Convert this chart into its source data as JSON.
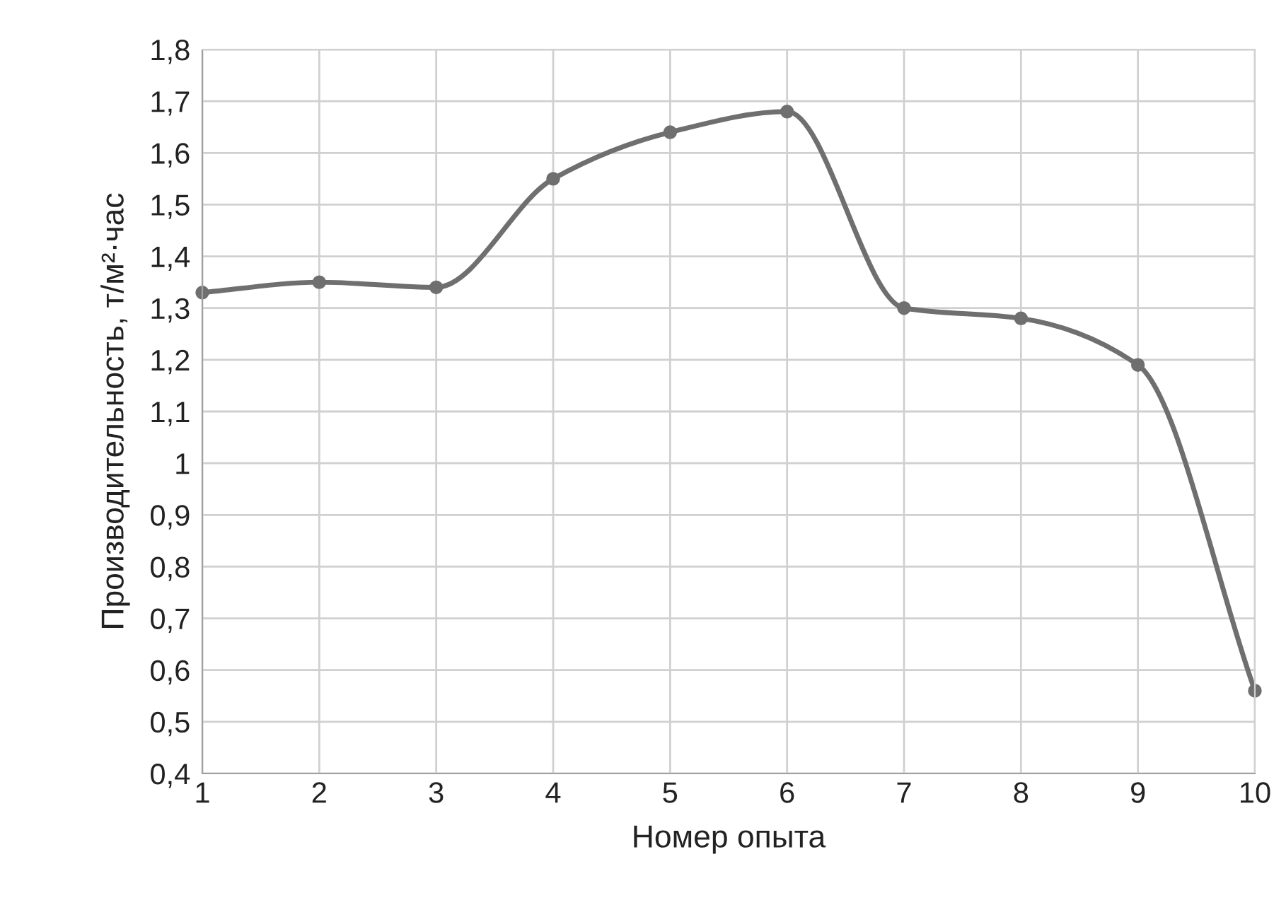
{
  "chart_data": {
    "type": "line",
    "xlabel": "Номер опыта",
    "ylabel": "Производительность, т/м²·час",
    "x": [
      1,
      2,
      3,
      4,
      5,
      6,
      7,
      8,
      9,
      10
    ],
    "series": [
      {
        "color": "#6f6f6f",
        "values": [
          1.33,
          1.35,
          1.34,
          1.55,
          1.64,
          1.68,
          1.3,
          1.28,
          1.19,
          0.56
        ]
      }
    ],
    "xlim": [
      1,
      10
    ],
    "xticks": [
      1,
      2,
      3,
      4,
      5,
      6,
      7,
      8,
      9,
      10
    ],
    "ylim": [
      0.4,
      1.8
    ],
    "yticks": [
      {
        "value": 0.4,
        "label": "0,4"
      },
      {
        "value": 0.5,
        "label": "0,5"
      },
      {
        "value": 0.6,
        "label": "0,6"
      },
      {
        "value": 0.7,
        "label": "0,7"
      },
      {
        "value": 0.8,
        "label": "0,8"
      },
      {
        "value": 0.9,
        "label": "0,9"
      },
      {
        "value": 1,
        "label": "1"
      },
      {
        "value": 1.1,
        "label": "1,1"
      },
      {
        "value": 1.2,
        "label": "1,2"
      },
      {
        "value": 1.3,
        "label": "1,3"
      },
      {
        "value": 1.4,
        "label": "1,4"
      },
      {
        "value": 1.5,
        "label": "1,5"
      },
      {
        "value": 1.6,
        "label": "1,6"
      },
      {
        "value": 1.7,
        "label": "1,7"
      },
      {
        "value": 1.8,
        "label": "1,8"
      }
    ],
    "grid": true,
    "marker": "circle",
    "line_style": "solid",
    "legend": false
  }
}
